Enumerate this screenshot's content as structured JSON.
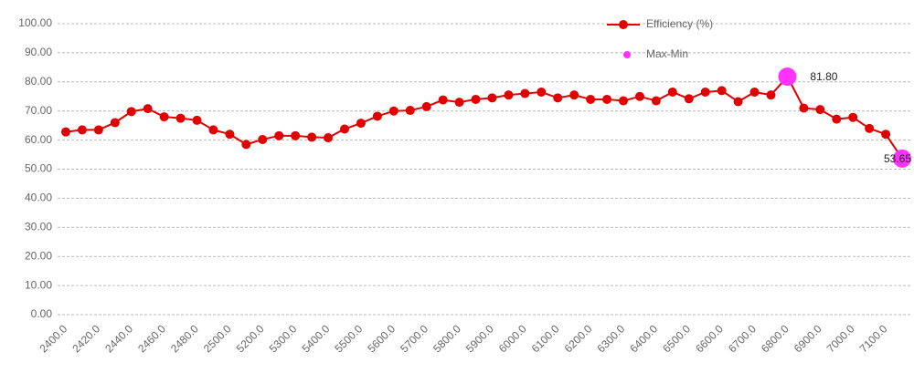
{
  "chart_data": {
    "type": "line",
    "categories": [
      "2400.0",
      null,
      "2420.0",
      null,
      "2440.0",
      null,
      "2460.0",
      null,
      "2480.0",
      null,
      "2500.0",
      null,
      "5200.0",
      null,
      "5300.0",
      null,
      "5400.0",
      null,
      "5500.0",
      null,
      "5600.0",
      null,
      "5700.0",
      null,
      "5800.0",
      null,
      "5900.0",
      null,
      "6000.0",
      null,
      "6100.0",
      null,
      "6200.0",
      null,
      "6300.0",
      null,
      "6400.0",
      null,
      "6500.0",
      null,
      "6600.0",
      null,
      "6700.0",
      null,
      "6800.0",
      null,
      "6900.0",
      null,
      "7000.0",
      null,
      "7100.0",
      null
    ],
    "series": [
      {
        "name": "Efficiency (%)",
        "color": "#e00000",
        "values": [
          62.8,
          63.5,
          63.5,
          66,
          69.8,
          70.8,
          68,
          67.5,
          66.8,
          63.5,
          62,
          58.5,
          60.2,
          61.5,
          61.5,
          61,
          60.8,
          63.8,
          65.8,
          68.2,
          70,
          70.2,
          71.5,
          73.8,
          73,
          74,
          74.5,
          75.5,
          76,
          76.5,
          74.5,
          75.5,
          74,
          74,
          73.5,
          75,
          73.5,
          76.5,
          74.2,
          76.5,
          77,
          73.2,
          76.5,
          75.5,
          81.8,
          71,
          70.5,
          67.2,
          67.8,
          64,
          62,
          53.65
        ]
      },
      {
        "name": "Max-Min",
        "color": "#ff33ff",
        "values": [
          null,
          null,
          null,
          null,
          null,
          null,
          null,
          null,
          null,
          null,
          null,
          null,
          null,
          null,
          null,
          null,
          null,
          null,
          null,
          null,
          null,
          null,
          null,
          null,
          null,
          null,
          null,
          null,
          null,
          null,
          null,
          null,
          null,
          null,
          null,
          null,
          null,
          null,
          null,
          null,
          null,
          null,
          null,
          null,
          81.8,
          null,
          null,
          null,
          null,
          null,
          null,
          53.65
        ],
        "value_labels": [
          null,
          null,
          null,
          null,
          null,
          null,
          null,
          null,
          null,
          null,
          null,
          null,
          null,
          null,
          null,
          null,
          null,
          null,
          null,
          null,
          null,
          null,
          null,
          null,
          null,
          null,
          null,
          null,
          null,
          null,
          null,
          null,
          null,
          null,
          null,
          null,
          null,
          null,
          null,
          null,
          null,
          null,
          null,
          null,
          "81.80",
          null,
          null,
          null,
          null,
          null,
          null,
          "53.65"
        ]
      }
    ],
    "ylim": [
      0,
      100
    ],
    "yticks": [
      {
        "value": 0,
        "label": "0.00"
      },
      {
        "value": 10,
        "label": "10.00"
      },
      {
        "value": 20,
        "label": "20.00"
      },
      {
        "value": 30,
        "label": "30.00"
      },
      {
        "value": 40,
        "label": "40.00"
      },
      {
        "value": 50,
        "label": "50.00"
      },
      {
        "value": 60,
        "label": "60.00"
      },
      {
        "value": 70,
        "label": "70.00"
      },
      {
        "value": 80,
        "label": "80.00"
      },
      {
        "value": 90,
        "label": "90.00"
      },
      {
        "value": 100,
        "label": "100.00"
      }
    ],
    "grid": true,
    "legend": "top"
  }
}
